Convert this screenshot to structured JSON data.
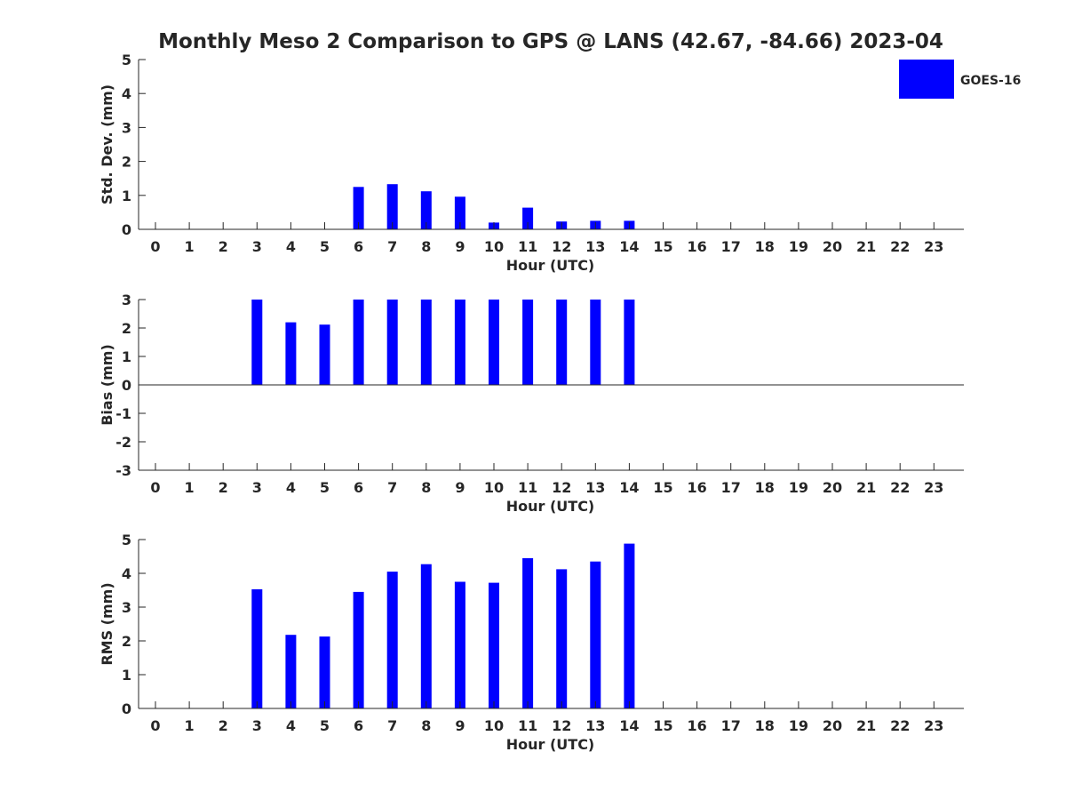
{
  "title": "Monthly Meso 2 Comparison to GPS @ LANS (42.67, -84.66) 2023-04",
  "legend": {
    "label": "GOES-16",
    "color": "#0000ff",
    "placement": "top-right"
  },
  "colors": {
    "bar": "#0000ff",
    "axis": "#262626",
    "background": "#ffffff"
  },
  "chart_data": [
    {
      "type": "bar",
      "name": "std",
      "xlabel": "Hour (UTC)",
      "ylabel": "Std. Dev. (mm)",
      "ylim": [
        0,
        5
      ],
      "yticks": [
        0,
        1,
        2,
        3,
        4,
        5
      ],
      "categories": [
        "0",
        "1",
        "2",
        "3",
        "4",
        "5",
        "6",
        "7",
        "8",
        "9",
        "10",
        "11",
        "12",
        "13",
        "14",
        "15",
        "16",
        "17",
        "18",
        "19",
        "20",
        "21",
        "22",
        "23"
      ],
      "series": [
        {
          "name": "GOES-16",
          "values": [
            null,
            null,
            null,
            0,
            0,
            0,
            1.25,
            1.33,
            1.12,
            0.96,
            0.2,
            0.64,
            0.23,
            0.25,
            0.25,
            null,
            null,
            null,
            null,
            null,
            null,
            null,
            null,
            null
          ]
        }
      ]
    },
    {
      "type": "bar",
      "name": "bias",
      "xlabel": "Hour (UTC)",
      "ylabel": "Bias (mm)",
      "ylim": [
        -3,
        3
      ],
      "yticks": [
        -3,
        -2,
        -1,
        0,
        1,
        2,
        3
      ],
      "zero_line": true,
      "categories": [
        "0",
        "1",
        "2",
        "3",
        "4",
        "5",
        "6",
        "7",
        "8",
        "9",
        "10",
        "11",
        "12",
        "13",
        "14",
        "15",
        "16",
        "17",
        "18",
        "19",
        "20",
        "21",
        "22",
        "23"
      ],
      "series": [
        {
          "name": "GOES-16",
          "values": [
            null,
            null,
            null,
            3,
            2.2,
            2.12,
            3,
            3,
            3,
            3,
            3,
            3,
            3,
            3,
            3,
            null,
            null,
            null,
            null,
            null,
            null,
            null,
            null,
            null
          ]
        }
      ]
    },
    {
      "type": "bar",
      "name": "rms",
      "xlabel": "Hour (UTC)",
      "ylabel": "RMS (mm)",
      "ylim": [
        0,
        5
      ],
      "yticks": [
        0,
        1,
        2,
        3,
        4,
        5
      ],
      "categories": [
        "0",
        "1",
        "2",
        "3",
        "4",
        "5",
        "6",
        "7",
        "8",
        "9",
        "10",
        "11",
        "12",
        "13",
        "14",
        "15",
        "16",
        "17",
        "18",
        "19",
        "20",
        "21",
        "22",
        "23"
      ],
      "series": [
        {
          "name": "GOES-16",
          "values": [
            null,
            null,
            null,
            3.53,
            2.18,
            2.13,
            3.45,
            4.05,
            4.27,
            3.75,
            3.72,
            4.45,
            4.12,
            4.35,
            4.88,
            null,
            null,
            null,
            null,
            null,
            null,
            null,
            null,
            null
          ]
        }
      ]
    }
  ]
}
